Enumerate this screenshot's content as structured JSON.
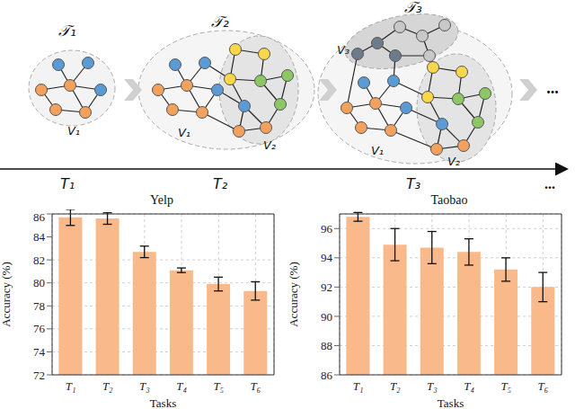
{
  "diagram": {
    "graphs": [
      {
        "label": "𝒯₁",
        "subsets": [
          "V₁"
        ]
      },
      {
        "label": "𝒯₂",
        "subsets": [
          "V₁",
          "V₂"
        ]
      },
      {
        "label": "𝒯₃",
        "subsets": [
          "V₁",
          "V₂",
          "V₃"
        ]
      }
    ],
    "timeline": [
      "T₁",
      "T₂",
      "T₃"
    ],
    "continuation": "..."
  },
  "chart_data": [
    {
      "type": "bar",
      "title": "Yelp",
      "x_label": "Tasks",
      "y_label": "Accuracy (%)",
      "categories": [
        "T₁",
        "T₂",
        "T₃",
        "T₄",
        "T₅",
        "T₆"
      ],
      "values": [
        85.7,
        85.6,
        82.7,
        81.1,
        79.9,
        79.3
      ],
      "errors": [
        0.7,
        0.5,
        0.5,
        0.2,
        0.6,
        0.8
      ],
      "color": "#f9b98a",
      "ylim": [
        72,
        86
      ],
      "yticks": [
        72,
        74,
        76,
        78,
        80,
        82,
        84,
        86
      ],
      "grid": true
    },
    {
      "type": "bar",
      "title": "Taobao",
      "x_label": "Tasks",
      "y_label": "Accuracy (%)",
      "categories": [
        "T₁",
        "T₂",
        "T₃",
        "T₄",
        "T₅",
        "T₆"
      ],
      "values": [
        96.8,
        94.9,
        94.7,
        94.4,
        93.2,
        92.0
      ],
      "errors": [
        0.3,
        1.1,
        1.1,
        0.9,
        0.8,
        1.0
      ],
      "color": "#f9b98a",
      "ylim": [
        86,
        97
      ],
      "yticks": [
        86,
        88,
        90,
        92,
        94,
        96
      ],
      "grid": true
    }
  ]
}
